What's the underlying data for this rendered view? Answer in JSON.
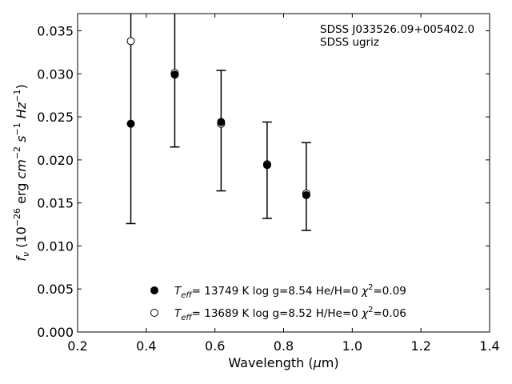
{
  "chart_data": {
    "type": "scatter",
    "title": "",
    "xlabel": "Wavelength (μm)",
    "ylabel": "fν (10⁻²⁶ erg cm⁻² s⁻¹ Hz⁻¹)",
    "xlim": [
      0.2,
      1.4
    ],
    "ylim": [
      0.0,
      0.037
    ],
    "x_ticks": [
      "0.2",
      "0.4",
      "0.6",
      "0.8",
      "1.0",
      "1.2",
      "1.4"
    ],
    "y_ticks": [
      "0.000",
      "0.005",
      "0.010",
      "0.015",
      "0.020",
      "0.025",
      "0.030",
      "0.035"
    ],
    "grid": false,
    "legend_position": "bottom-center",
    "annotation": [
      "SDSS J033526.09+005402.0",
      "SDSS ugriz"
    ],
    "observed": {
      "x": [
        0.355,
        0.483,
        0.618,
        0.752,
        0.866
      ],
      "y": [
        0.0252,
        0.0388,
        0.0234,
        0.0188,
        0.0169
      ],
      "yerr": [
        0.0126,
        0.0173,
        0.007,
        0.0056,
        0.0051
      ]
    },
    "series": [
      {
        "name": "T_eff= 13749 K  log g=8.54  He/H=0  χ²=0.09",
        "marker": "filled-circle",
        "x": [
          0.355,
          0.483,
          0.618,
          0.752,
          0.866
        ],
        "y": [
          0.0242,
          0.0299,
          0.0244,
          0.0194,
          0.0159
        ]
      },
      {
        "name": "T_eff= 13689 K  log g=8.52  H/He=0  χ²=0.06",
        "marker": "open-circle",
        "x": [
          0.355,
          0.483,
          0.618,
          0.752,
          0.866
        ],
        "y": [
          0.0338,
          0.0301,
          0.0242,
          0.0195,
          0.0161
        ]
      }
    ]
  }
}
